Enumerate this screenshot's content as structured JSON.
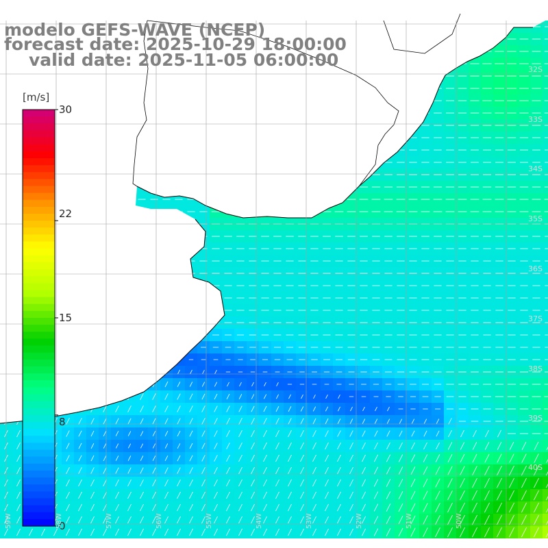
{
  "title": {
    "line1": "modelo GEFS-WAVE (NCEP)",
    "line2": "forecast date: 2025-10-29 18:00:00",
    "line3": "valid date: 2025-11-05 06:00:00"
  },
  "colorbar": {
    "unit": "[m/s]",
    "ticks": [
      "30",
      "22",
      "15",
      "8",
      "0"
    ],
    "tick_values": [
      30,
      22,
      15,
      8,
      0
    ],
    "min": 0,
    "max": 30,
    "colors": [
      "#0000ff",
      "#0070ff",
      "#00e0ff",
      "#00ff80",
      "#00d000",
      "#b0ff00",
      "#ffff00",
      "#ff9000",
      "#ff0000",
      "#d0007a"
    ]
  },
  "latitude_labels": [
    "32S",
    "33S",
    "34S",
    "35S",
    "36S",
    "37S",
    "38S",
    "39S",
    "40S"
  ],
  "longitude_labels": [
    "59W",
    "58W",
    "57W",
    "56W",
    "55W",
    "54W",
    "53W",
    "52W",
    "51W",
    "50W"
  ],
  "colors": {
    "land": "#ffffff",
    "coast": "#000000",
    "grid": "#a0a0a0",
    "vector": "#ffffff",
    "title": "#808080"
  }
}
